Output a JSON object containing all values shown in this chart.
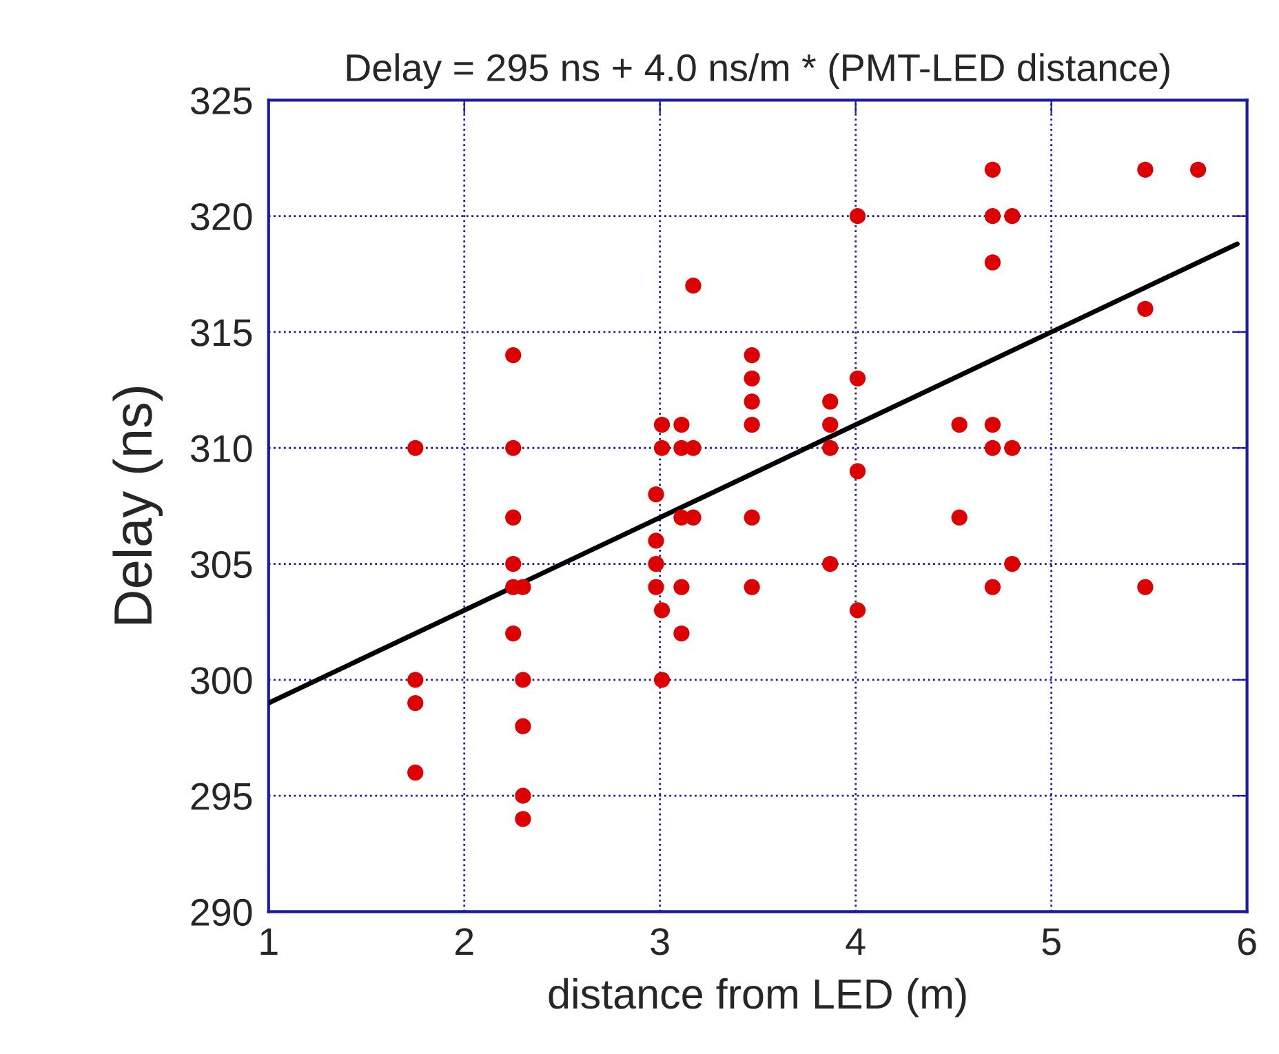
{
  "chart_data": {
    "type": "scatter",
    "title": "Delay = 295 ns + 4.0 ns/m * (PMT-LED distance)",
    "xlabel": "distance from LED (m)",
    "ylabel": "Delay (ns)",
    "series": [
      {
        "color": "#dd0000",
        "marker": "circle",
        "x": [
          1.75,
          1.75,
          1.75,
          1.75,
          2.25,
          2.25,
          2.25,
          2.25,
          2.25,
          2.25,
          2.3,
          2.3,
          2.3,
          2.3,
          2.3,
          2.98,
          2.98,
          2.98,
          2.98,
          3.01,
          3.01,
          3.01,
          3.01,
          3.11,
          3.11,
          3.11,
          3.11,
          3.11,
          3.17,
          3.17,
          3.17,
          3.47,
          3.47,
          3.47,
          3.47,
          3.47,
          3.47,
          3.87,
          3.87,
          3.87,
          3.87,
          4.01,
          4.01,
          4.01,
          4.01,
          4.53,
          4.53,
          4.7,
          4.7,
          4.7,
          4.7,
          4.7,
          4.7,
          4.8,
          4.8,
          4.8,
          5.48,
          5.48,
          5.48,
          5.75
        ],
        "values": [
          310,
          300,
          299,
          296,
          314,
          310,
          307,
          305,
          304,
          302,
          304,
          300,
          298,
          295,
          294,
          308,
          306,
          305,
          304,
          311,
          310,
          303,
          300,
          311,
          310,
          307,
          304,
          302,
          317,
          310,
          307,
          314,
          313,
          312,
          311,
          307,
          304,
          312,
          311,
          310,
          305,
          320,
          313,
          309,
          303,
          311,
          307,
          322,
          320,
          318,
          311,
          310,
          304,
          320,
          310,
          305,
          322,
          316,
          304,
          322
        ]
      },
      {
        "type": "line",
        "color": "#000000",
        "marker": "none",
        "line_style": "solid",
        "x": [
          1,
          5.95
        ],
        "values": [
          299,
          318.8
        ]
      }
    ],
    "xlim": [
      1,
      6
    ],
    "xticks": [
      1,
      2,
      3,
      4,
      5,
      6
    ],
    "ylim": [
      290,
      325
    ],
    "yticks": [
      290,
      295,
      300,
      305,
      310,
      315,
      320,
      325
    ],
    "grid": true,
    "legend": false
  }
}
